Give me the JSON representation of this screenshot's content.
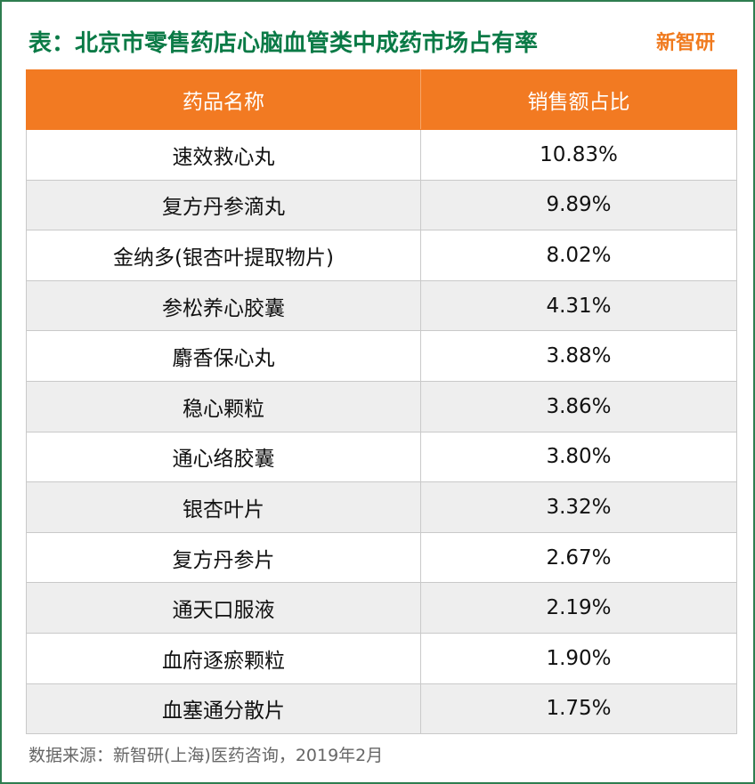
{
  "title": "表：北京市零售药店心脑血管类中成药市场占有率",
  "brand": "新智研",
  "colors": {
    "title": "#0a7a46",
    "header_bg": "#f27a22",
    "brand": "#f07a1e",
    "row_alt": "#eeeeee",
    "border": "#2e7d4f"
  },
  "chart_data": {
    "type": "table",
    "columns": [
      "药品名称",
      "销售额占比"
    ],
    "rows": [
      [
        "速效救心丸",
        "10.83%"
      ],
      [
        "复方丹参滴丸",
        "9.89%"
      ],
      [
        "金纳多(银杏叶提取物片)",
        "8.02%"
      ],
      [
        "参松养心胶囊",
        "4.31%"
      ],
      [
        "麝香保心丸",
        "3.88%"
      ],
      [
        "稳心颗粒",
        "3.86%"
      ],
      [
        "通心络胶囊",
        "3.80%"
      ],
      [
        "银杏叶片",
        "3.32%"
      ],
      [
        "复方丹参片",
        "2.67%"
      ],
      [
        "通天口服液",
        "2.19%"
      ],
      [
        "血府逐瘀颗粒",
        "1.90%"
      ],
      [
        "血塞通分散片",
        "1.75%"
      ]
    ]
  },
  "source": "数据来源：新智研(上海)医药咨询，2019年2月"
}
